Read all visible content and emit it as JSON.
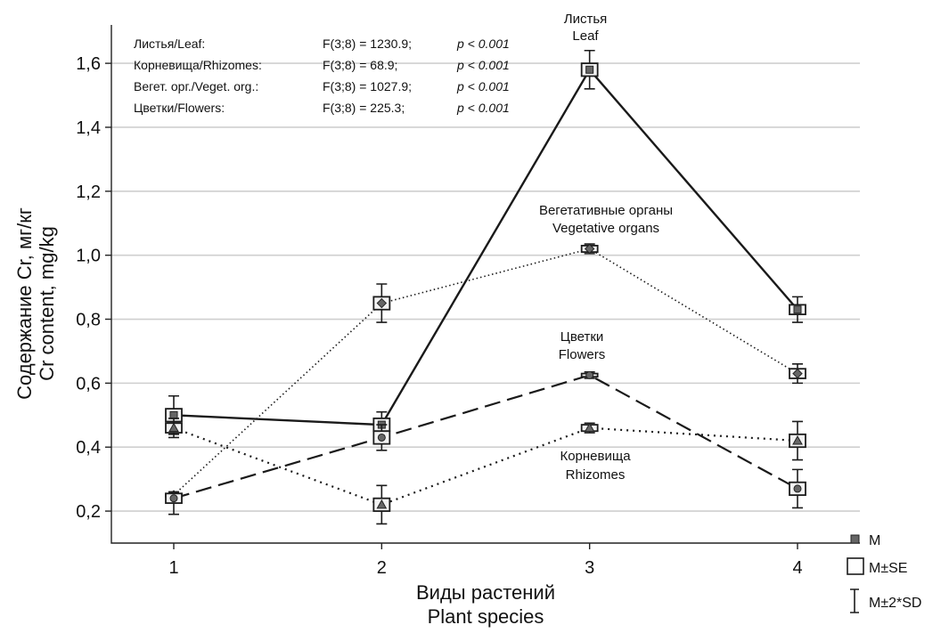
{
  "chart_data": {
    "type": "line",
    "ylabel_ru": "Содержание Cr, мг/кг",
    "ylabel_en": "Cr content, mg/kg",
    "xlabel_ru": "Виды растений",
    "xlabel_en": "Plant species",
    "x": [
      1,
      2,
      3,
      4
    ],
    "xlim": [
      0.7,
      4.3
    ],
    "ylim": [
      0.1,
      1.72
    ],
    "yticks": [
      "0,2",
      "0,4",
      "0,6",
      "0,8",
      "1,0",
      "1,2",
      "1,4",
      "1,6"
    ],
    "grid": true,
    "series": [
      {
        "key": "leaf",
        "label_ru": "Листья",
        "label_en": "Leaf",
        "line_style": "solid",
        "marker": "square",
        "mean": [
          0.5,
          0.47,
          1.58,
          0.83
        ],
        "se_low": [
          0.48,
          0.45,
          1.56,
          0.815
        ],
        "se_high": [
          0.52,
          0.49,
          1.6,
          0.845
        ],
        "sd2_low": [
          0.44,
          0.43,
          1.52,
          0.79
        ],
        "sd2_high": [
          0.56,
          0.51,
          1.64,
          0.87
        ]
      },
      {
        "key": "rhizomes",
        "label_ru": "Корневища",
        "label_en": "Rhizomes",
        "line_style": "dotted",
        "marker": "triangle",
        "mean": [
          0.46,
          0.22,
          0.46,
          0.42
        ],
        "se_low": [
          0.445,
          0.2,
          0.45,
          0.4
        ],
        "se_high": [
          0.475,
          0.24,
          0.47,
          0.44
        ],
        "sd2_low": [
          0.43,
          0.16,
          0.445,
          0.36
        ],
        "sd2_high": [
          0.49,
          0.28,
          0.475,
          0.48
        ]
      },
      {
        "key": "vegetative",
        "label_ru": "Вегетативные органы",
        "label_en": "Vegetative organs",
        "line_style": "dash-dot",
        "marker": "diamond",
        "mean": [
          0.25,
          0.85,
          1.02,
          0.63
        ],
        "se_low": [
          0.245,
          0.83,
          1.01,
          0.615
        ],
        "se_high": [
          0.255,
          0.87,
          1.03,
          0.645
        ],
        "sd2_low": [
          0.24,
          0.79,
          1.005,
          0.6
        ],
        "sd2_high": [
          0.26,
          0.91,
          1.035,
          0.66
        ]
      },
      {
        "key": "flowers",
        "label_ru": "Цветки",
        "label_en": "Flowers",
        "line_style": "dashed",
        "marker": "circle",
        "mean": [
          0.24,
          0.43,
          0.625,
          0.27
        ],
        "se_low": [
          0.225,
          0.41,
          0.62,
          0.25
        ],
        "se_high": [
          0.255,
          0.45,
          0.63,
          0.29
        ],
        "sd2_low": [
          0.19,
          0.39,
          0.615,
          0.21
        ],
        "sd2_high": [
          0.26,
          0.47,
          0.635,
          0.33
        ]
      }
    ],
    "stats": [
      {
        "label": "Листья/Leaf:",
        "test": "F(3;8) = 1230.9;",
        "p": "p < 0.001"
      },
      {
        "label": "Корневища/Rhizomes:",
        "test": "F(3;8) = 68.9;",
        "p": "p < 0.001"
      },
      {
        "label": "Вегет. орг./Veget. org.:",
        "test": "F(3;8) = 1027.9;",
        "p": "p < 0.001"
      },
      {
        "label": "Цветки/Flowers:",
        "test": "F(3;8) = 225.3;",
        "p": "p < 0.001"
      }
    ],
    "legend": [
      {
        "symbol": "mean",
        "label": "M"
      },
      {
        "symbol": "se",
        "label": "M±SE"
      },
      {
        "symbol": "sd",
        "label": "M±2*SD"
      }
    ],
    "legend_position": "bottom-right"
  }
}
